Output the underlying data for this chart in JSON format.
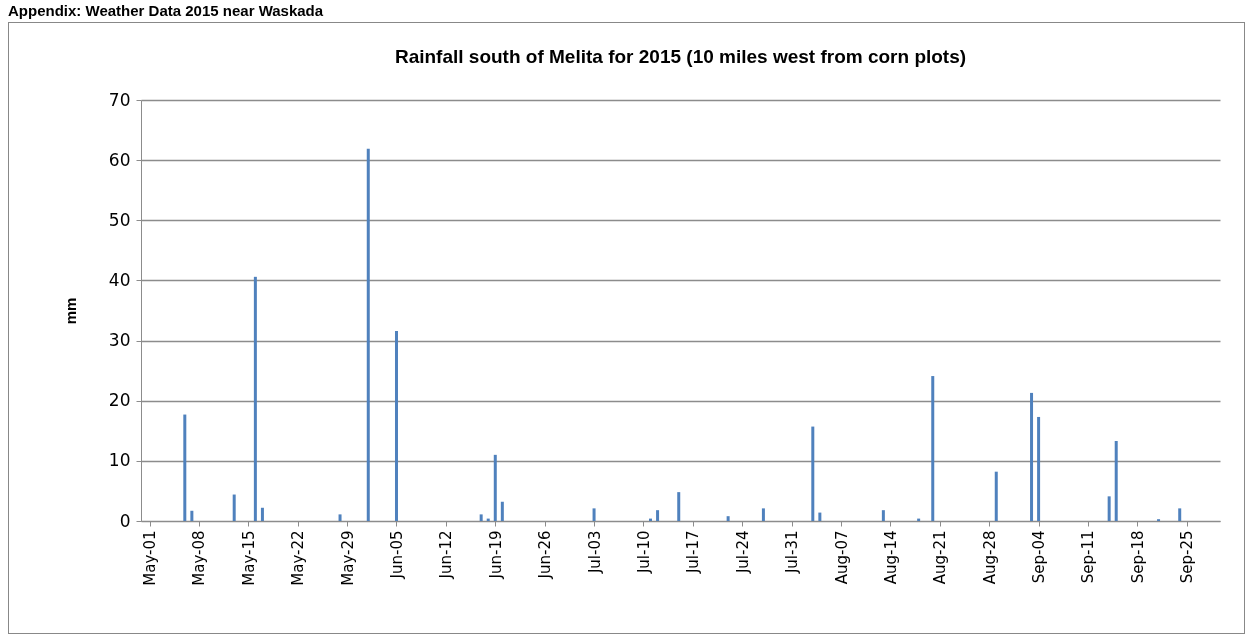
{
  "chart_data": {
    "type": "bar",
    "title": "Rainfall south of Melita for 2015  (10 miles west  from corn plots)",
    "ylabel": "mm",
    "annotations": [
      "Appendix: Weather Data 2015 near Waskada"
    ],
    "x": [
      "2015-05-06",
      "2015-05-07",
      "2015-05-13",
      "2015-05-16",
      "2015-05-17",
      "2015-05-28",
      "2015-06-01",
      "2015-06-05",
      "2015-06-17",
      "2015-06-18",
      "2015-06-19",
      "2015-06-20",
      "2015-07-03",
      "2015-07-11",
      "2015-07-12",
      "2015-07-15",
      "2015-07-22",
      "2015-07-27",
      "2015-08-03",
      "2015-08-04",
      "2015-08-13",
      "2015-08-18",
      "2015-08-20",
      "2015-08-29",
      "2015-09-03",
      "2015-09-04",
      "2015-09-14",
      "2015-09-15",
      "2015-09-21",
      "2015-09-24"
    ],
    "values": [
      17.7,
      1.7,
      4.4,
      40.6,
      2.2,
      1.1,
      61.9,
      31.6,
      1.1,
      0.4,
      11.0,
      3.2,
      2.1,
      0.4,
      1.8,
      4.8,
      0.8,
      2.1,
      15.7,
      1.4,
      1.8,
      0.4,
      24.1,
      8.2,
      21.3,
      17.3,
      4.1,
      13.3,
      0.3,
      2.1
    ],
    "color": "#4f81bd",
    "xlim": [
      "2015-04-30T12:00",
      "2015-09-29"
    ],
    "xticks": [
      {
        "value": "2015-05-01",
        "label": "May-01"
      },
      {
        "value": "2015-05-08",
        "label": "May-08"
      },
      {
        "value": "2015-05-15",
        "label": "May-15"
      },
      {
        "value": "2015-05-22",
        "label": "May-22"
      },
      {
        "value": "2015-05-29",
        "label": "May-29"
      },
      {
        "value": "2015-06-05",
        "label": "Jun-05"
      },
      {
        "value": "2015-06-12",
        "label": "Jun-12"
      },
      {
        "value": "2015-06-19",
        "label": "Jun-19"
      },
      {
        "value": "2015-06-26",
        "label": "Jun-26"
      },
      {
        "value": "2015-07-03",
        "label": "Jul-03"
      },
      {
        "value": "2015-07-10",
        "label": "Jul-10"
      },
      {
        "value": "2015-07-17",
        "label": "Jul-17"
      },
      {
        "value": "2015-07-24",
        "label": "Jul-24"
      },
      {
        "value": "2015-07-31",
        "label": "Jul-31"
      },
      {
        "value": "2015-08-07",
        "label": "Aug-07"
      },
      {
        "value": "2015-08-14",
        "label": "Aug-14"
      },
      {
        "value": "2015-08-21",
        "label": "Aug-21"
      },
      {
        "value": "2015-08-28",
        "label": "Aug-28"
      },
      {
        "value": "2015-09-04",
        "label": "Sep-04"
      },
      {
        "value": "2015-09-11",
        "label": "Sep-11"
      },
      {
        "value": "2015-09-18",
        "label": "Sep-18"
      },
      {
        "value": "2015-09-25",
        "label": "Sep-25"
      }
    ],
    "ylim": [
      0,
      70
    ],
    "yticks": [
      0,
      10,
      20,
      30,
      40,
      50,
      60,
      70
    ],
    "grid": "y"
  }
}
